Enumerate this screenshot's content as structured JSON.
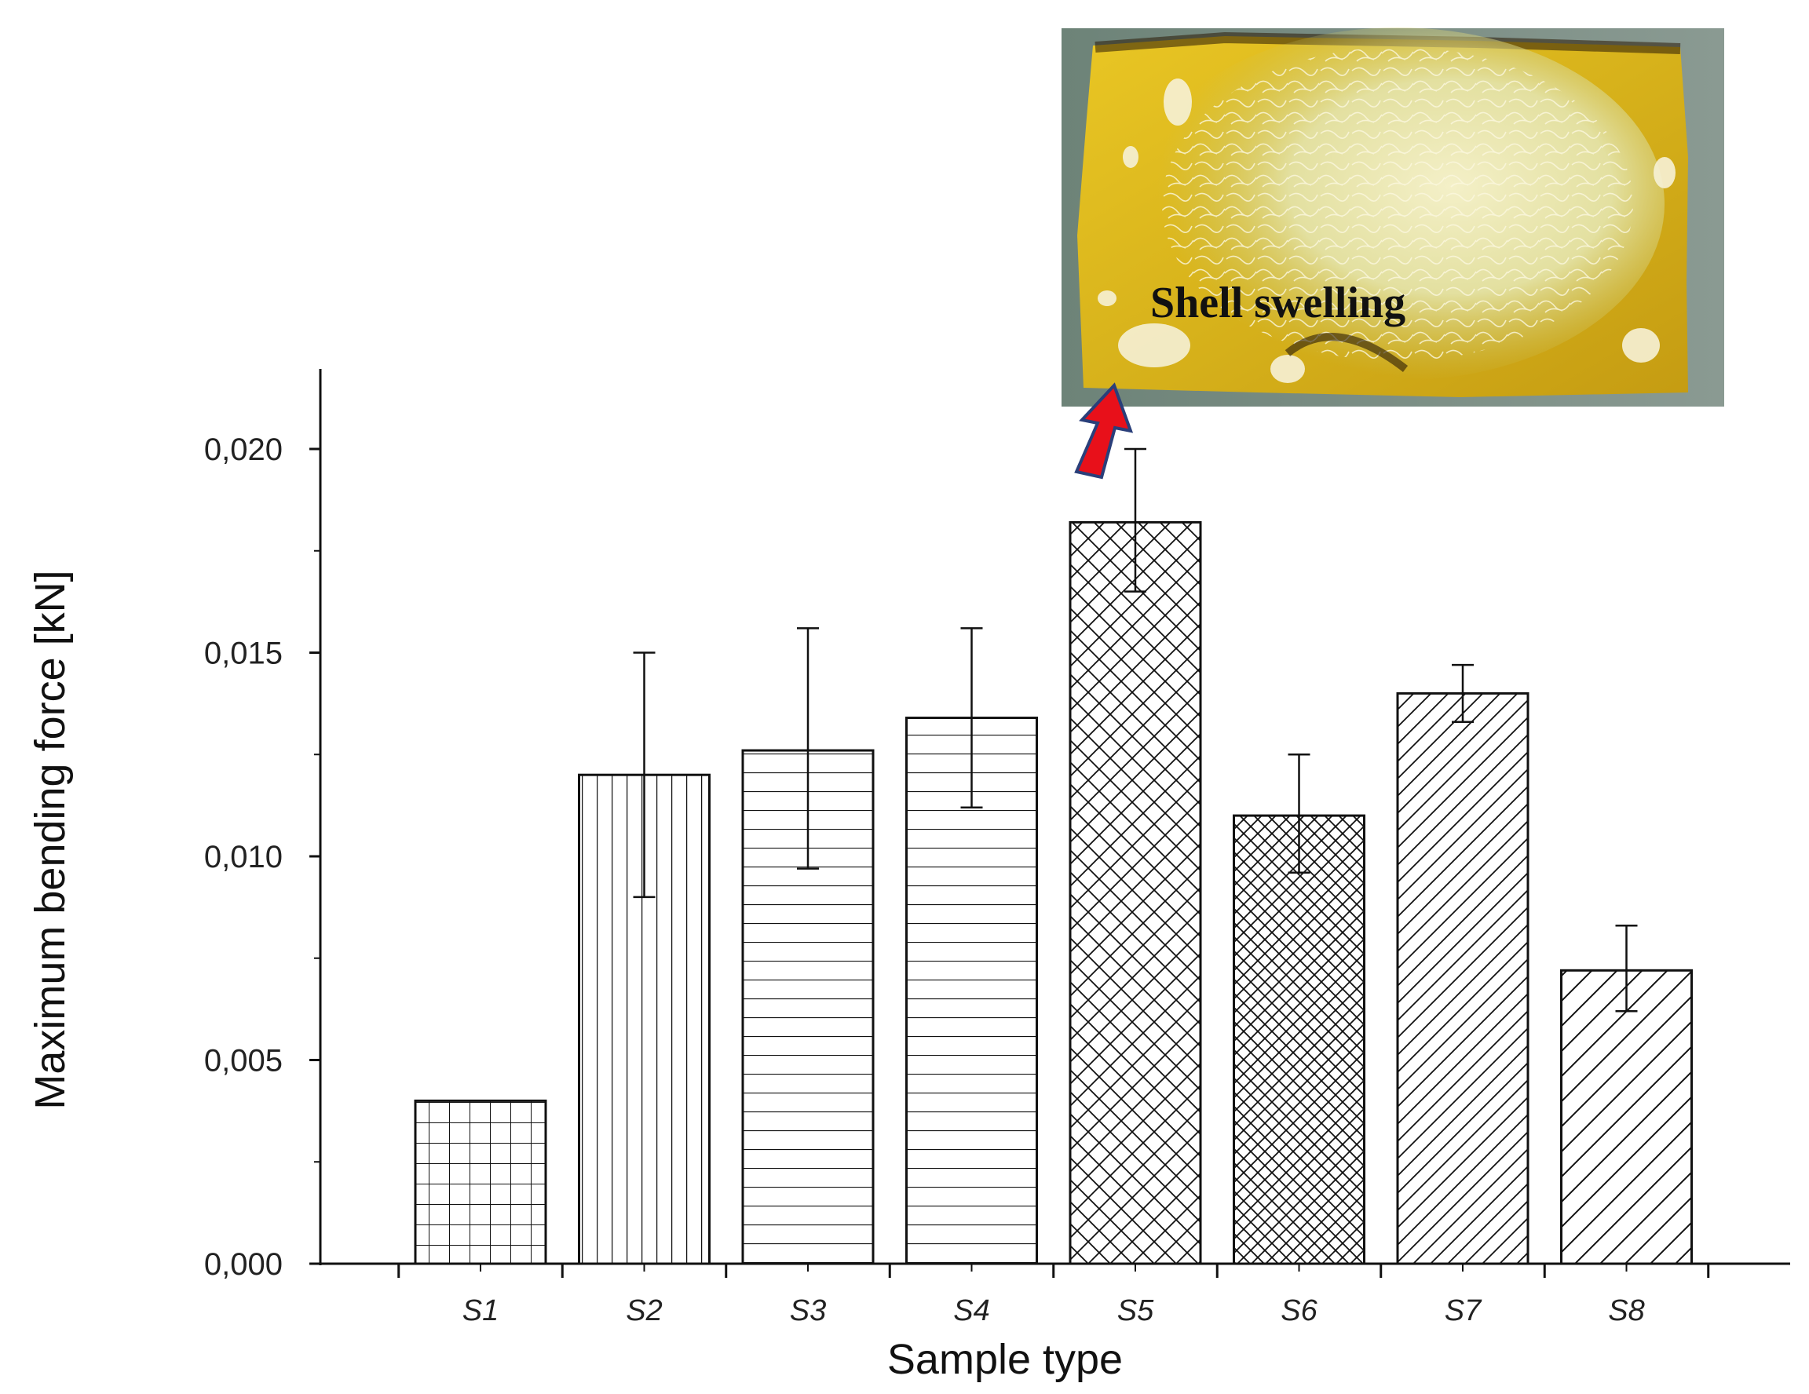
{
  "chart_data": {
    "type": "bar",
    "title": "",
    "xlabel": "Sample type",
    "ylabel": "Maximum bending force [kN]",
    "categories": [
      "S1",
      "S2",
      "S3",
      "S4",
      "S5",
      "S6",
      "S7",
      "S8"
    ],
    "values": [
      0.004,
      0.012,
      0.0126,
      0.0134,
      0.0182,
      0.011,
      0.014,
      0.0072
    ],
    "error_low": [
      null,
      0.009,
      0.0097,
      0.0112,
      0.0165,
      0.0096,
      0.0133,
      0.0062
    ],
    "error_high": [
      null,
      0.015,
      0.0156,
      0.0156,
      0.02,
      0.0125,
      0.0147,
      0.0083
    ],
    "patterns": [
      "grid",
      "vertical",
      "horizontal",
      "horizontal",
      "crosshatch",
      "crosshatch-dense",
      "diagonal-dense",
      "diagonal"
    ],
    "ylim": [
      0,
      0.022
    ],
    "yticks": [
      "0,000",
      "0,005",
      "0,010",
      "0,015",
      "0,020"
    ],
    "ytick_values": [
      0,
      0.005,
      0.01,
      0.015,
      0.02
    ],
    "inset": {
      "caption": "Shell swelling",
      "points_to": "S5",
      "arrow_color": "#e8101a"
    }
  }
}
